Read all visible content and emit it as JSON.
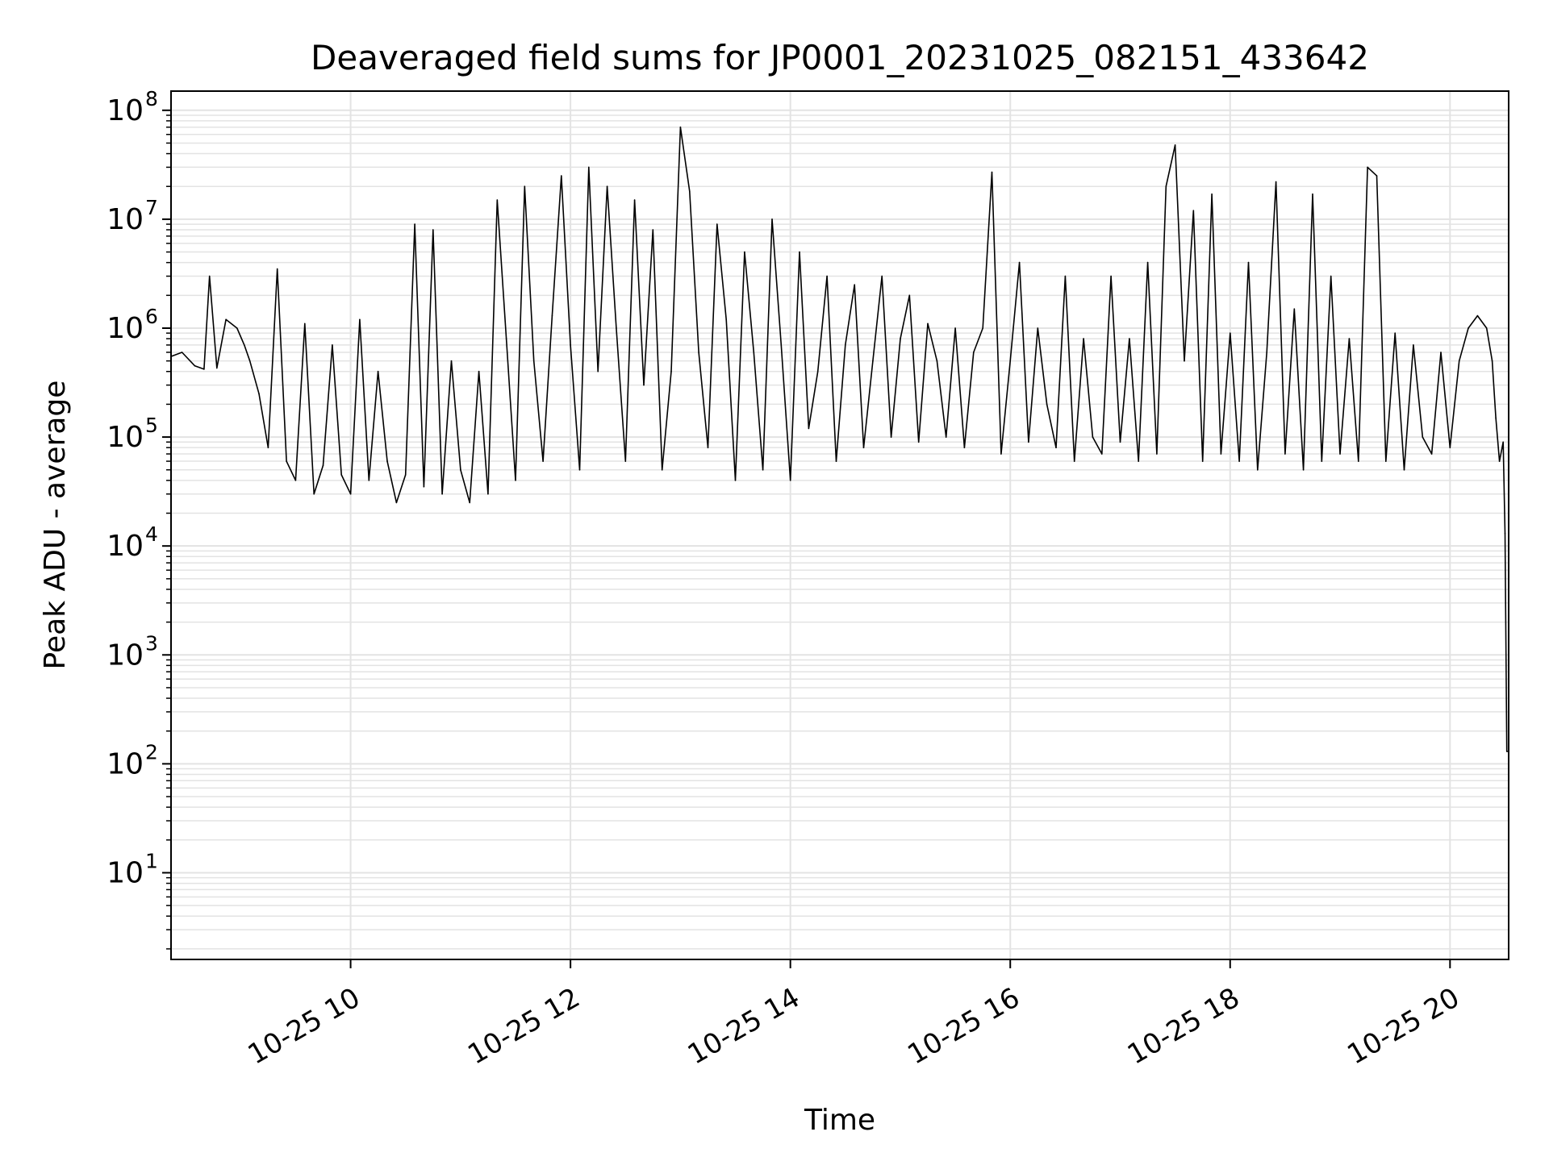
{
  "chart_data": {
    "type": "line",
    "title": "Deaveraged field sums for JP0001_20231025_082151_433642",
    "xlabel": "Time",
    "ylabel": "Peak ADU - average",
    "y_scale": "log",
    "ylim": [
      1.6,
      150000000
    ],
    "xlim": [
      "2023-10-25 08:22",
      "2023-10-25 20:32"
    ],
    "x_ticks": [
      {
        "t": "2023-10-25 10:00",
        "label": "10-25 10"
      },
      {
        "t": "2023-10-25 12:00",
        "label": "10-25 12"
      },
      {
        "t": "2023-10-25 14:00",
        "label": "10-25 14"
      },
      {
        "t": "2023-10-25 16:00",
        "label": "10-25 16"
      },
      {
        "t": "2023-10-25 18:00",
        "label": "10-25 18"
      },
      {
        "t": "2023-10-25 20:00",
        "label": "10-25 20"
      }
    ],
    "y_ticks": [
      {
        "value": 10,
        "base": "10",
        "exp": "1"
      },
      {
        "value": 100,
        "base": "10",
        "exp": "2"
      },
      {
        "value": 1000,
        "base": "10",
        "exp": "3"
      },
      {
        "value": 10000,
        "base": "10",
        "exp": "4"
      },
      {
        "value": 100000,
        "base": "10",
        "exp": "5"
      },
      {
        "value": 1000000,
        "base": "10",
        "exp": "6"
      },
      {
        "value": 10000000,
        "base": "10",
        "exp": "7"
      },
      {
        "value": 100000000,
        "base": "10",
        "exp": "8"
      }
    ],
    "grid": true,
    "line_color": "#000000",
    "series": [
      {
        "x": [
          "2023-10-25 08:22",
          "2023-10-25 08:28",
          "2023-10-25 08:35",
          "2023-10-25 08:40",
          "2023-10-25 08:43",
          "2023-10-25 08:47",
          "2023-10-25 08:52",
          "2023-10-25 08:58",
          "2023-10-25 09:02",
          "2023-10-25 09:05",
          "2023-10-25 09:10",
          "2023-10-25 09:15",
          "2023-10-25 09:20",
          "2023-10-25 09:25",
          "2023-10-25 09:30",
          "2023-10-25 09:35",
          "2023-10-25 09:40",
          "2023-10-25 09:45",
          "2023-10-25 09:50",
          "2023-10-25 09:55",
          "2023-10-25 10:00",
          "2023-10-25 10:05",
          "2023-10-25 10:10",
          "2023-10-25 10:15",
          "2023-10-25 10:20",
          "2023-10-25 10:25",
          "2023-10-25 10:30",
          "2023-10-25 10:35",
          "2023-10-25 10:40",
          "2023-10-25 10:45",
          "2023-10-25 10:50",
          "2023-10-25 10:55",
          "2023-10-25 11:00",
          "2023-10-25 11:05",
          "2023-10-25 11:10",
          "2023-10-25 11:15",
          "2023-10-25 11:20",
          "2023-10-25 11:25",
          "2023-10-25 11:30",
          "2023-10-25 11:35",
          "2023-10-25 11:40",
          "2023-10-25 11:45",
          "2023-10-25 11:50",
          "2023-10-25 11:55",
          "2023-10-25 12:00",
          "2023-10-25 12:05",
          "2023-10-25 12:10",
          "2023-10-25 12:15",
          "2023-10-25 12:20",
          "2023-10-25 12:25",
          "2023-10-25 12:30",
          "2023-10-25 12:35",
          "2023-10-25 12:40",
          "2023-10-25 12:45",
          "2023-10-25 12:50",
          "2023-10-25 12:55",
          "2023-10-25 13:00",
          "2023-10-25 13:05",
          "2023-10-25 13:10",
          "2023-10-25 13:15",
          "2023-10-25 13:20",
          "2023-10-25 13:25",
          "2023-10-25 13:30",
          "2023-10-25 13:35",
          "2023-10-25 13:40",
          "2023-10-25 13:45",
          "2023-10-25 13:50",
          "2023-10-25 13:55",
          "2023-10-25 14:00",
          "2023-10-25 14:05",
          "2023-10-25 14:10",
          "2023-10-25 14:15",
          "2023-10-25 14:20",
          "2023-10-25 14:25",
          "2023-10-25 14:30",
          "2023-10-25 14:35",
          "2023-10-25 14:40",
          "2023-10-25 14:45",
          "2023-10-25 14:50",
          "2023-10-25 14:55",
          "2023-10-25 15:00",
          "2023-10-25 15:05",
          "2023-10-25 15:10",
          "2023-10-25 15:15",
          "2023-10-25 15:20",
          "2023-10-25 15:25",
          "2023-10-25 15:30",
          "2023-10-25 15:35",
          "2023-10-25 15:40",
          "2023-10-25 15:45",
          "2023-10-25 15:50",
          "2023-10-25 15:55",
          "2023-10-25 16:00",
          "2023-10-25 16:05",
          "2023-10-25 16:10",
          "2023-10-25 16:15",
          "2023-10-25 16:20",
          "2023-10-25 16:25",
          "2023-10-25 16:30",
          "2023-10-25 16:35",
          "2023-10-25 16:40",
          "2023-10-25 16:45",
          "2023-10-25 16:50",
          "2023-10-25 16:55",
          "2023-10-25 17:00",
          "2023-10-25 17:05",
          "2023-10-25 17:10",
          "2023-10-25 17:15",
          "2023-10-25 17:20",
          "2023-10-25 17:25",
          "2023-10-25 17:30",
          "2023-10-25 17:35",
          "2023-10-25 17:40",
          "2023-10-25 17:45",
          "2023-10-25 17:50",
          "2023-10-25 17:55",
          "2023-10-25 18:00",
          "2023-10-25 18:05",
          "2023-10-25 18:10",
          "2023-10-25 18:15",
          "2023-10-25 18:20",
          "2023-10-25 18:25",
          "2023-10-25 18:30",
          "2023-10-25 18:35",
          "2023-10-25 18:40",
          "2023-10-25 18:45",
          "2023-10-25 18:50",
          "2023-10-25 18:55",
          "2023-10-25 19:00",
          "2023-10-25 19:05",
          "2023-10-25 19:10",
          "2023-10-25 19:15",
          "2023-10-25 19:20",
          "2023-10-25 19:25",
          "2023-10-25 19:30",
          "2023-10-25 19:35",
          "2023-10-25 19:40",
          "2023-10-25 19:45",
          "2023-10-25 19:50",
          "2023-10-25 19:55",
          "2023-10-25 20:00",
          "2023-10-25 20:05",
          "2023-10-25 20:10",
          "2023-10-25 20:15",
          "2023-10-25 20:20",
          "2023-10-25 20:23",
          "2023-10-25 20:25",
          "2023-10-25 20:27",
          "2023-10-25 20:29",
          "2023-10-25 20:30",
          "2023-10-25 20:31",
          "2023-10-25 20:32"
        ],
        "y": [
          550000,
          600000,
          450000,
          420000,
          3000000,
          430000,
          1200000,
          1000000,
          700000,
          500000,
          250000,
          80000,
          3500000,
          60000,
          40000,
          1100000,
          30000,
          55000,
          700000,
          45000,
          30000,
          1200000,
          40000,
          400000,
          60000,
          25000,
          45000,
          9000000,
          35000,
          8000000,
          30000,
          500000,
          50000,
          25000,
          400000,
          30000,
          15000000,
          800000,
          40000,
          20000000,
          500000,
          60000,
          1300000,
          25000000,
          700000,
          50000,
          30000000,
          400000,
          20000000,
          1000000,
          60000,
          15000000,
          300000,
          8000000,
          50000,
          400000,
          70000000,
          18000000,
          600000,
          80000,
          9000000,
          1200000,
          40000,
          5000000,
          600000,
          50000,
          10000000,
          700000,
          40000,
          5000000,
          120000,
          400000,
          3000000,
          60000,
          700000,
          2500000,
          80000,
          500000,
          3000000,
          100000,
          800000,
          2000000,
          90000,
          1100000,
          500000,
          100000,
          1000000,
          80000,
          600000,
          1000000,
          27000000,
          70000,
          500000,
          4000000,
          90000,
          1000000,
          200000,
          80000,
          3000000,
          60000,
          800000,
          100000,
          70000,
          3000000,
          90000,
          800000,
          60000,
          4000000,
          70000,
          20000000,
          48000000,
          500000,
          12000000,
          60000,
          17000000,
          70000,
          900000,
          60000,
          4000000,
          50000,
          600000,
          22000000,
          70000,
          1500000,
          50000,
          17000000,
          60000,
          3000000,
          70000,
          800000,
          60000,
          30000000,
          25000000,
          60000,
          900000,
          50000,
          700000,
          100000,
          70000,
          600000,
          80000,
          500000,
          1000000,
          1300000,
          1000000,
          500000,
          150000,
          60000,
          90000,
          13000,
          130,
          130
        ]
      }
    ]
  }
}
